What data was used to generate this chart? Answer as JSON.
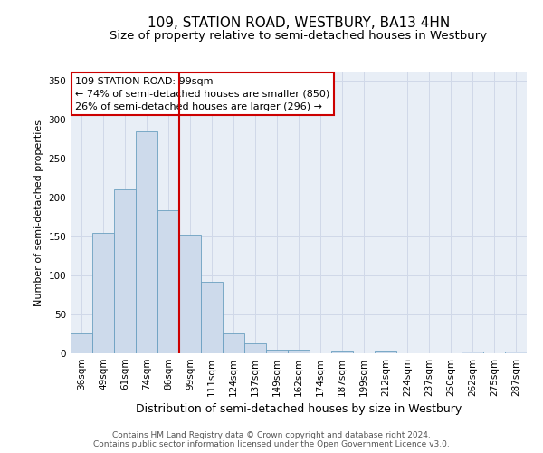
{
  "title": "109, STATION ROAD, WESTBURY, BA13 4HN",
  "subtitle": "Size of property relative to semi-detached houses in Westbury",
  "xlabel": "Distribution of semi-detached houses by size in Westbury",
  "ylabel": "Number of semi-detached properties",
  "categories": [
    "36sqm",
    "49sqm",
    "61sqm",
    "74sqm",
    "86sqm",
    "99sqm",
    "111sqm",
    "124sqm",
    "137sqm",
    "149sqm",
    "162sqm",
    "174sqm",
    "187sqm",
    "199sqm",
    "212sqm",
    "224sqm",
    "237sqm",
    "250sqm",
    "262sqm",
    "275sqm",
    "287sqm"
  ],
  "values": [
    25,
    155,
    210,
    285,
    183,
    152,
    92,
    25,
    13,
    5,
    5,
    0,
    3,
    0,
    3,
    0,
    0,
    0,
    2,
    0,
    2
  ],
  "bar_color": "#cddaeb",
  "bar_edge_color": "#6a9fc0",
  "vline_color": "#cc0000",
  "annotation_box_text": "109 STATION ROAD: 99sqm\n← 74% of semi-detached houses are smaller (850)\n26% of semi-detached houses are larger (296) →",
  "annotation_box_color": "#cc0000",
  "annotation_box_fill": "#ffffff",
  "ylim": [
    0,
    360
  ],
  "yticks": [
    0,
    50,
    100,
    150,
    200,
    250,
    300,
    350
  ],
  "grid_color": "#d0d8e8",
  "bg_color": "#e8eef6",
  "footer_text": "Contains HM Land Registry data © Crown copyright and database right 2024.\nContains public sector information licensed under the Open Government Licence v3.0.",
  "title_fontsize": 11,
  "subtitle_fontsize": 9.5,
  "xlabel_fontsize": 9,
  "ylabel_fontsize": 8,
  "tick_fontsize": 7.5,
  "annotation_fontsize": 8,
  "footer_fontsize": 6.5
}
